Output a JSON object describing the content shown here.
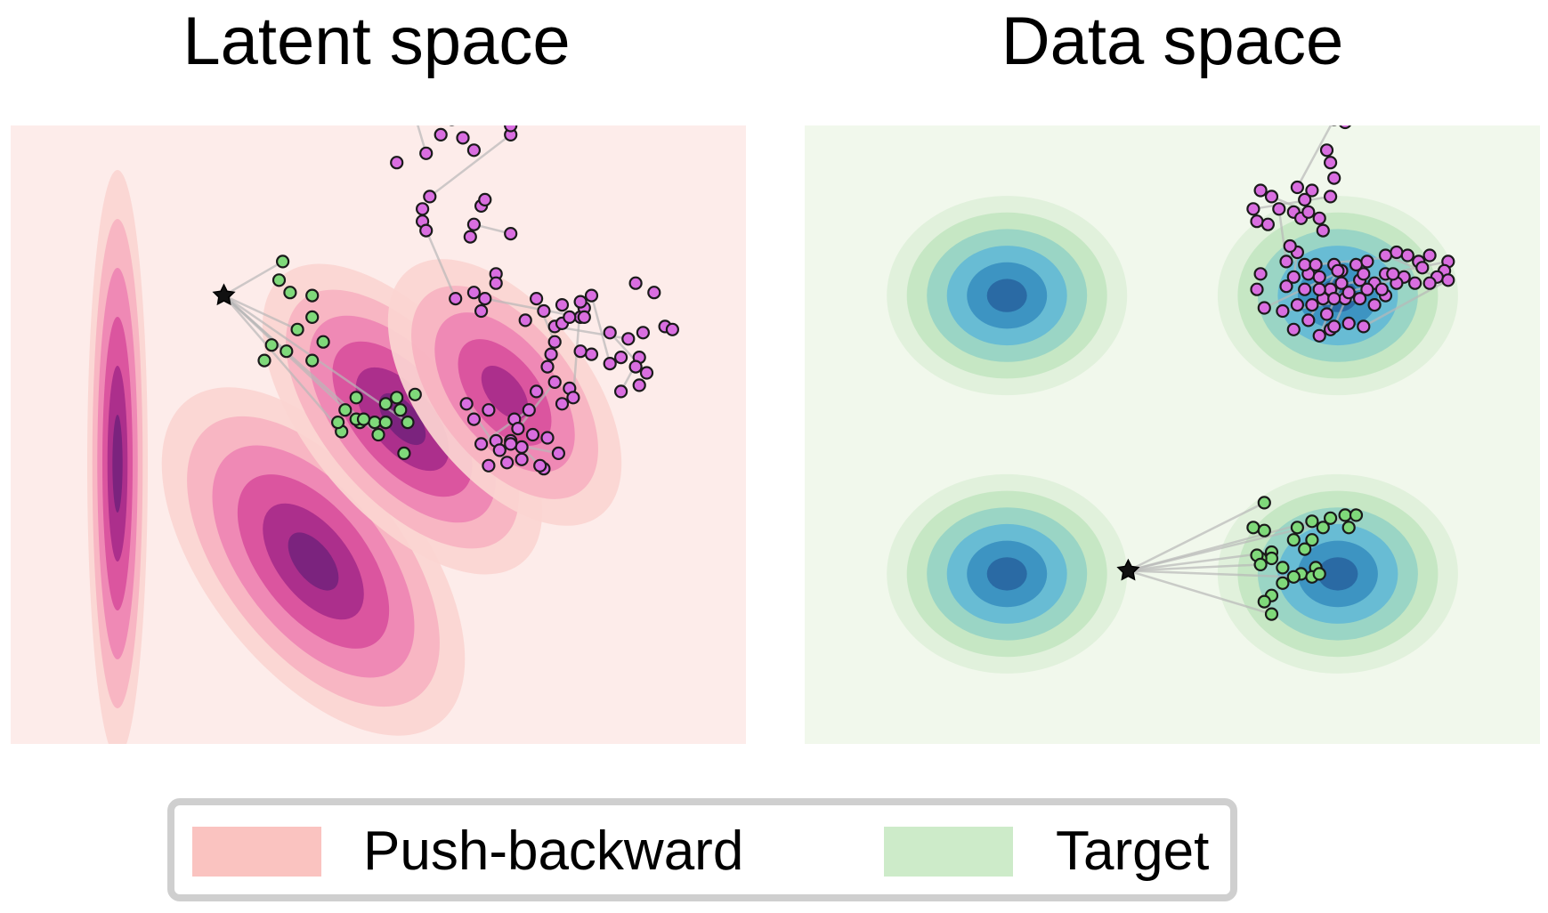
{
  "titles": {
    "left": "Latent space",
    "right": "Data space"
  },
  "legend": {
    "items": [
      {
        "label": "Push-backward",
        "color": "#fac3c0"
      },
      {
        "label": "Target",
        "color": "#cdebc9"
      }
    ],
    "placement": "bottom-center"
  },
  "colors": {
    "latent_background": "#fdecea",
    "data_background": "#f1f8ec",
    "density_levels_latent": [
      "#fbd5d1",
      "#f7b3c1",
      "#ee85b4",
      "#d9509d",
      "#a82c8a",
      "#76237d"
    ],
    "density_levels_data": [
      "#e1f1dc",
      "#c6e7c4",
      "#9ad5c5",
      "#68bcd4",
      "#3d94c2",
      "#2a6aa4"
    ],
    "trajectory_source": "#d96ee0",
    "trajectory_target": "#7fd97a",
    "start_marker": "#111111",
    "path_line": "#b8b8b8"
  },
  "chart_data": [
    {
      "type": "contour",
      "panel": "Latent space",
      "title": "Latent space",
      "xlim": [
        -1,
        1
      ],
      "ylim": [
        -1,
        1
      ],
      "axes_visible": false,
      "grid": false,
      "density": "push-backward",
      "start_point": [
        -0.42,
        0.45
      ],
      "target_trajectory_points": [
        [
          -0.26,
          0.56
        ],
        [
          -0.27,
          0.5
        ],
        [
          -0.24,
          0.46
        ],
        [
          -0.18,
          0.45
        ],
        [
          -0.22,
          0.34
        ],
        [
          -0.18,
          0.38
        ],
        [
          -0.15,
          0.3
        ],
        [
          -0.29,
          0.29
        ],
        [
          -0.25,
          0.27
        ],
        [
          -0.31,
          0.24
        ],
        [
          -0.18,
          0.24
        ],
        [
          -0.09,
          0.08
        ],
        [
          -0.1,
          0.01
        ],
        [
          -0.06,
          0.12
        ],
        [
          -0.05,
          0.04
        ],
        [
          -0.01,
          0.04
        ],
        [
          -0.06,
          0.05
        ],
        [
          -0.04,
          0.05
        ],
        [
          -0.11,
          0.04
        ],
        [
          0.02,
          0.1
        ],
        [
          0.0,
          0.0
        ],
        [
          0.02,
          0.04
        ],
        [
          0.05,
          0.12
        ],
        [
          0.06,
          0.08
        ],
        [
          0.08,
          0.04
        ],
        [
          0.1,
          0.13
        ],
        [
          0.07,
          -0.06
        ],
        [
          0.02,
          0.04
        ]
      ],
      "source_trajectory_points": [
        [
          0.1,
          1.03
        ],
        [
          0.17,
          0.97
        ],
        [
          0.2,
          1.02
        ],
        [
          0.23,
          0.96
        ],
        [
          0.26,
          0.92
        ],
        [
          0.36,
          0.97
        ],
        [
          0.36,
          1.0
        ],
        [
          0.13,
          0.91
        ],
        [
          0.28,
          0.74
        ],
        [
          0.29,
          0.76
        ],
        [
          0.26,
          0.68
        ],
        [
          0.25,
          0.64
        ],
        [
          0.14,
          0.77
        ],
        [
          0.05,
          0.88
        ],
        [
          0.12,
          0.73
        ],
        [
          0.12,
          0.69
        ],
        [
          0.13,
          0.66
        ],
        [
          0.36,
          0.65
        ],
        [
          0.32,
          0.52
        ],
        [
          0.32,
          0.49
        ],
        [
          0.29,
          0.44
        ],
        [
          0.26,
          0.46
        ],
        [
          0.21,
          0.44
        ],
        [
          0.28,
          0.4
        ],
        [
          0.45,
          0.4
        ],
        [
          0.48,
          0.35
        ],
        [
          0.5,
          0.36
        ],
        [
          0.55,
          0.38
        ],
        [
          0.56,
          0.41
        ],
        [
          0.56,
          0.38
        ],
        [
          0.63,
          0.33
        ],
        [
          0.72,
          0.33
        ],
        [
          0.68,
          0.31
        ],
        [
          0.78,
          0.35
        ],
        [
          0.8,
          0.34
        ],
        [
          0.71,
          0.25
        ],
        [
          0.7,
          0.22
        ],
        [
          0.73,
          0.2
        ],
        [
          0.66,
          0.25
        ],
        [
          0.58,
          0.26
        ],
        [
          0.63,
          0.23
        ],
        [
          0.71,
          0.16
        ],
        [
          0.66,
          0.14
        ],
        [
          0.55,
          0.27
        ],
        [
          0.4,
          0.37
        ],
        [
          0.43,
          0.44
        ],
        [
          0.5,
          0.42
        ],
        [
          0.58,
          0.45
        ],
        [
          0.7,
          0.49
        ],
        [
          0.75,
          0.46
        ],
        [
          0.55,
          0.43
        ],
        [
          0.52,
          0.38
        ],
        [
          0.48,
          0.3
        ],
        [
          0.47,
          0.26
        ],
        [
          0.46,
          0.22
        ],
        [
          0.48,
          0.17
        ],
        [
          0.52,
          0.15
        ],
        [
          0.53,
          0.12
        ],
        [
          0.5,
          0.1
        ],
        [
          0.43,
          0.14
        ],
        [
          0.41,
          0.08
        ],
        [
          0.37,
          0.05
        ],
        [
          0.38,
          0.02
        ],
        [
          0.32,
          -0.02
        ],
        [
          0.3,
          0.08
        ],
        [
          0.24,
          0.1
        ],
        [
          0.26,
          0.05
        ],
        [
          0.28,
          -0.03
        ],
        [
          0.33,
          -0.05
        ],
        [
          0.36,
          -0.02
        ],
        [
          0.39,
          -0.04
        ],
        [
          0.3,
          -0.1
        ],
        [
          0.35,
          -0.09
        ],
        [
          0.39,
          -0.08
        ],
        [
          0.46,
          -0.01
        ],
        [
          0.49,
          -0.06
        ],
        [
          0.45,
          -0.11
        ],
        [
          0.44,
          -0.1
        ],
        [
          0.42,
          0.0
        ],
        [
          0.36,
          -0.03
        ]
      ]
    },
    {
      "type": "contour",
      "panel": "Data space",
      "title": "Data space",
      "xlim": [
        -1,
        1
      ],
      "ylim": [
        -1,
        1
      ],
      "axes_visible": false,
      "grid": false,
      "density": "target mixture of four Gaussians",
      "gaussian_centers": [
        [
          -0.45,
          0.45
        ],
        [
          0.45,
          0.45
        ],
        [
          -0.45,
          -0.45
        ],
        [
          0.45,
          -0.45
        ]
      ],
      "start_point": [
        -0.12,
        -0.44
      ],
      "target_trajectory_points": [
        [
          0.25,
          -0.22
        ],
        [
          0.22,
          -0.3
        ],
        [
          0.25,
          -0.31
        ],
        [
          0.34,
          -0.3
        ],
        [
          0.38,
          -0.28
        ],
        [
          0.41,
          -0.3
        ],
        [
          0.43,
          -0.27
        ],
        [
          0.47,
          -0.26
        ],
        [
          0.5,
          -0.26
        ],
        [
          0.48,
          -0.3
        ],
        [
          0.33,
          -0.34
        ],
        [
          0.36,
          -0.37
        ],
        [
          0.27,
          -0.38
        ],
        [
          0.27,
          -0.4
        ],
        [
          0.24,
          -0.4
        ],
        [
          0.23,
          -0.39
        ],
        [
          0.24,
          -0.42
        ],
        [
          0.38,
          -0.34
        ],
        [
          0.3,
          -0.43
        ],
        [
          0.35,
          -0.45
        ],
        [
          0.33,
          -0.46
        ],
        [
          0.3,
          -0.48
        ],
        [
          0.27,
          -0.52
        ],
        [
          0.25,
          -0.54
        ],
        [
          0.27,
          -0.58
        ],
        [
          0.39,
          -0.43
        ],
        [
          0.38,
          -0.46
        ],
        [
          0.4,
          -0.45
        ]
      ],
      "source_trajectory_points": [
        [
          0.44,
          1.02
        ],
        [
          0.47,
          1.01
        ],
        [
          0.42,
          0.92
        ],
        [
          0.43,
          0.88
        ],
        [
          0.44,
          0.83
        ],
        [
          0.43,
          0.77
        ],
        [
          0.38,
          0.79
        ],
        [
          0.34,
          0.8
        ],
        [
          0.36,
          0.76
        ],
        [
          0.33,
          0.72
        ],
        [
          0.27,
          0.77
        ],
        [
          0.24,
          0.79
        ],
        [
          0.22,
          0.73
        ],
        [
          0.23,
          0.69
        ],
        [
          0.26,
          0.68
        ],
        [
          0.29,
          0.73
        ],
        [
          0.35,
          0.7
        ],
        [
          0.37,
          0.72
        ],
        [
          0.4,
          0.7
        ],
        [
          0.41,
          0.66
        ],
        [
          0.34,
          0.59
        ],
        [
          0.32,
          0.61
        ],
        [
          0.31,
          0.56
        ],
        [
          0.24,
          0.52
        ],
        [
          0.23,
          0.47
        ],
        [
          0.25,
          0.41
        ],
        [
          0.31,
          0.48
        ],
        [
          0.33,
          0.51
        ],
        [
          0.37,
          0.52
        ],
        [
          0.36,
          0.55
        ],
        [
          0.39,
          0.55
        ],
        [
          0.44,
          0.55
        ],
        [
          0.46,
          0.53
        ],
        [
          0.5,
          0.55
        ],
        [
          0.53,
          0.56
        ],
        [
          0.58,
          0.58
        ],
        [
          0.61,
          0.59
        ],
        [
          0.64,
          0.58
        ],
        [
          0.67,
          0.56
        ],
        [
          0.7,
          0.58
        ],
        [
          0.75,
          0.56
        ],
        [
          0.74,
          0.53
        ],
        [
          0.72,
          0.51
        ],
        [
          0.68,
          0.54
        ],
        [
          0.66,
          0.49
        ],
        [
          0.63,
          0.51
        ],
        [
          0.61,
          0.49
        ],
        [
          0.58,
          0.52
        ],
        [
          0.55,
          0.49
        ],
        [
          0.51,
          0.5
        ],
        [
          0.46,
          0.49
        ],
        [
          0.43,
          0.47
        ],
        [
          0.41,
          0.44
        ],
        [
          0.38,
          0.42
        ],
        [
          0.34,
          0.42
        ],
        [
          0.3,
          0.4
        ],
        [
          0.33,
          0.34
        ],
        [
          0.4,
          0.32
        ],
        [
          0.43,
          0.34
        ],
        [
          0.48,
          0.36
        ],
        [
          0.52,
          0.35
        ],
        [
          0.47,
          0.44
        ],
        [
          0.51,
          0.44
        ],
        [
          0.55,
          0.42
        ],
        [
          0.58,
          0.45
        ],
        [
          0.6,
          0.52
        ],
        [
          0.7,
          0.49
        ],
        [
          0.75,
          0.5
        ],
        [
          0.57,
          0.47
        ],
        [
          0.53,
          0.47
        ],
        [
          0.48,
          0.46
        ],
        [
          0.44,
          0.44
        ],
        [
          0.4,
          0.47
        ],
        [
          0.36,
          0.47
        ],
        [
          0.4,
          0.51
        ],
        [
          0.45,
          0.53
        ],
        [
          0.52,
          0.52
        ],
        [
          0.44,
          0.35
        ],
        [
          0.42,
          0.39
        ],
        [
          0.37,
          0.37
        ]
      ]
    }
  ]
}
